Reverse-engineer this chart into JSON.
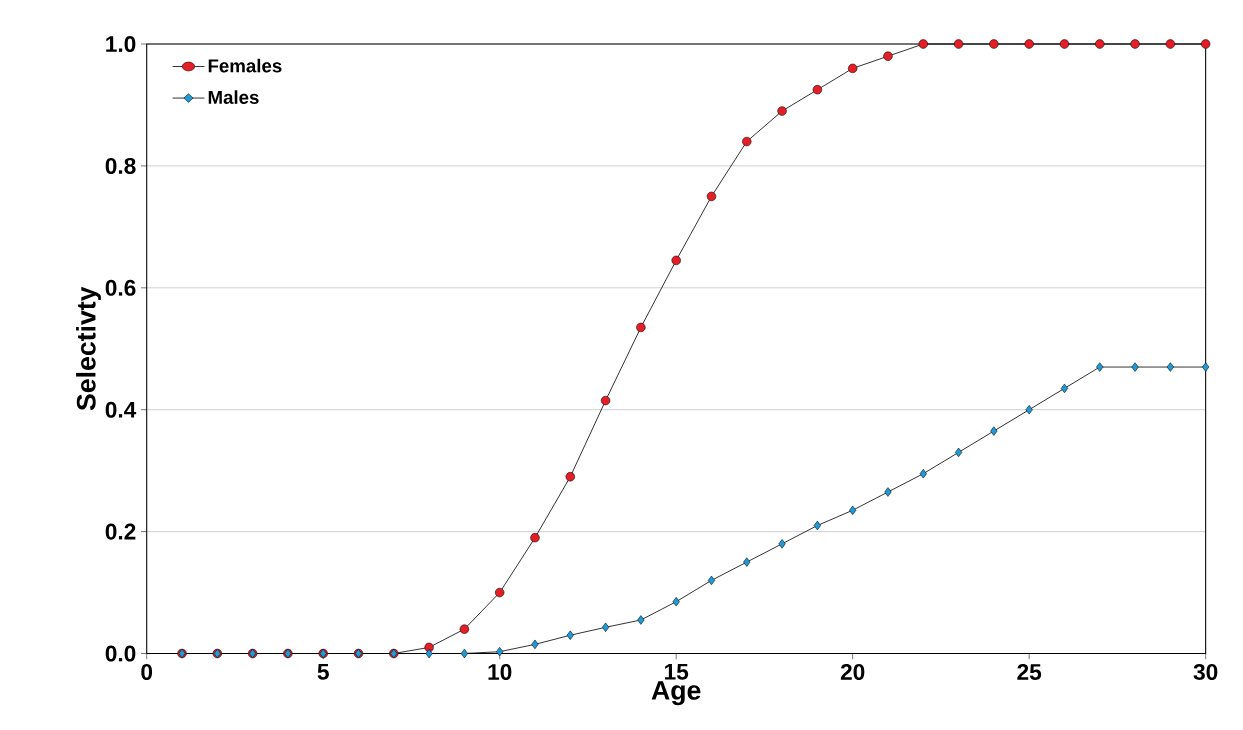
{
  "chart_data": {
    "type": "line",
    "xlabel": "Age",
    "ylabel": "Selectivty",
    "x": [
      1,
      2,
      3,
      4,
      5,
      6,
      7,
      8,
      9,
      10,
      11,
      12,
      13,
      14,
      15,
      16,
      17,
      18,
      19,
      20,
      21,
      22,
      23,
      24,
      25,
      26,
      27,
      28,
      29,
      30
    ],
    "series": [
      {
        "name": "Females",
        "color": "#e41e26",
        "marker": "circle",
        "values": [
          0,
          0,
          0,
          0,
          0,
          0,
          0,
          0.01,
          0.04,
          0.1,
          0.19,
          0.29,
          0.415,
          0.535,
          0.645,
          0.75,
          0.84,
          0.89,
          0.925,
          0.96,
          0.98,
          1.0,
          1.0,
          1.0,
          1.0,
          1.0,
          1.0,
          1.0,
          1.0,
          1.0
        ]
      },
      {
        "name": "Males",
        "color": "#1e9ad6",
        "marker": "diamond",
        "values": [
          0,
          0,
          0,
          0,
          0,
          0,
          0,
          0,
          0,
          0.003,
          0.015,
          0.03,
          0.043,
          0.055,
          0.085,
          0.12,
          0.15,
          0.18,
          0.21,
          0.235,
          0.265,
          0.295,
          0.33,
          0.365,
          0.4,
          0.435,
          0.47,
          0.47,
          0.47,
          0.47
        ]
      }
    ],
    "xlim": [
      0,
      30
    ],
    "xticks": [
      0,
      5,
      10,
      15,
      20,
      25,
      30
    ],
    "ylim": [
      0,
      1.0
    ],
    "yticks": [
      {
        "value": 0,
        "label": "0.0"
      },
      {
        "value": 0.2,
        "label": "0.2"
      },
      {
        "value": 0.4,
        "label": "0.4"
      },
      {
        "value": 0.6,
        "label": "0.6"
      },
      {
        "value": 0.8,
        "label": "0.8"
      },
      {
        "value": 1.0,
        "label": "1.0"
      }
    ],
    "grid": "y",
    "legend": "top left",
    "line_style": "solid"
  }
}
